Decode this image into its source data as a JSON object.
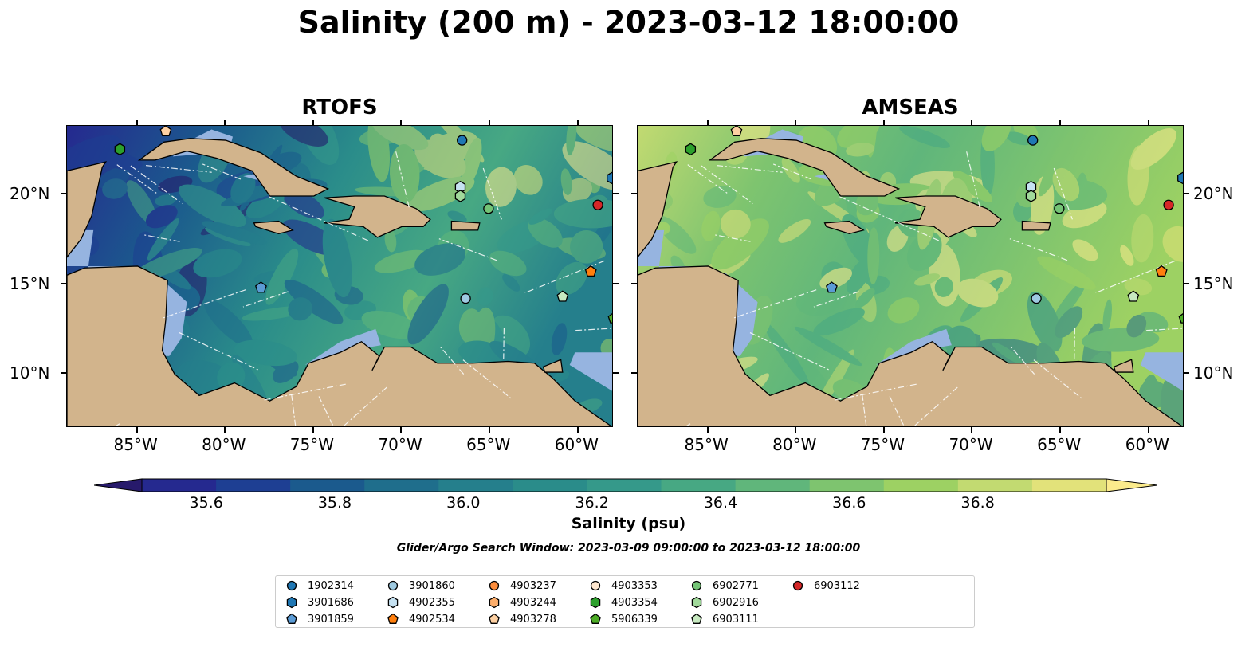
{
  "title": "Salinity (200 m) - 2023-03-12 18:00:00",
  "panels": [
    {
      "title": "RTOFS",
      "style": "low"
    },
    {
      "title": "AMSEAS",
      "style": "high"
    }
  ],
  "axes": {
    "lon_ticks": [
      "85°W",
      "80°W",
      "75°W",
      "70°W",
      "65°W",
      "60°W"
    ],
    "lat_ticks": [
      "20°N",
      "15°N",
      "10°N"
    ],
    "lon_range": [
      -89,
      -58
    ],
    "lat_range": [
      7,
      23.8
    ]
  },
  "colorbar": {
    "label": "Salinity (psu)",
    "ticks": [
      "35.6",
      "35.8",
      "36.0",
      "36.2",
      "36.4",
      "36.6",
      "36.8"
    ],
    "min": 35.5,
    "max": 37.0,
    "colors": [
      "#271a6b",
      "#25298f",
      "#1e3f93",
      "#1b5a8d",
      "#1f6e8c",
      "#257f8c",
      "#2a8c8a",
      "#35998a",
      "#47a883",
      "#60b67b",
      "#7ec46f",
      "#9dd163",
      "#c2da71",
      "#e2e27a",
      "#fbeb8c"
    ],
    "extend": "both"
  },
  "search_window": "Glider/Argo Search Window: 2023-03-09 09:00:00 to 2023-03-12 18:00:00",
  "colors": {
    "land": "#d2b48c",
    "shelf": "#96b4e0"
  },
  "legend": [
    {
      "id": "1902314",
      "marker": "circle",
      "color": "#1f77b4"
    },
    {
      "id": "3901686",
      "marker": "hexagon",
      "color": "#1f77b4"
    },
    {
      "id": "3901859",
      "marker": "pentagon",
      "color": "#5b9bd5"
    },
    {
      "id": "3901860",
      "marker": "circle",
      "color": "#9ecae1"
    },
    {
      "id": "4902355",
      "marker": "hexagon",
      "color": "#c6e2f2"
    },
    {
      "id": "4902534",
      "marker": "pentagon",
      "color": "#ff7f0e"
    },
    {
      "id": "4903237",
      "marker": "circle",
      "color": "#fd8d3c"
    },
    {
      "id": "4903244",
      "marker": "hexagon",
      "color": "#fdae6b"
    },
    {
      "id": "4903278",
      "marker": "pentagon",
      "color": "#fdd0a2"
    },
    {
      "id": "4903353",
      "marker": "circle",
      "color": "#fee6ce"
    },
    {
      "id": "4903354",
      "marker": "hexagon",
      "color": "#2ca02c"
    },
    {
      "id": "5906339",
      "marker": "pentagon",
      "color": "#4dac26"
    },
    {
      "id": "6902771",
      "marker": "circle",
      "color": "#74c476"
    },
    {
      "id": "6902916",
      "marker": "hexagon",
      "color": "#a1d99b"
    },
    {
      "id": "6903111",
      "marker": "pentagon",
      "color": "#c7e9c0"
    },
    {
      "id": "6903112",
      "marker": "circle",
      "color": "#d62728"
    }
  ],
  "floats": [
    {
      "id": "1902314",
      "lon": -66.6,
      "lat": 23.0
    },
    {
      "id": "3901686",
      "lon": -58.1,
      "lat": 20.9
    },
    {
      "id": "3901859",
      "lon": -78.0,
      "lat": 14.8
    },
    {
      "id": "3901860",
      "lon": -66.4,
      "lat": 14.2
    },
    {
      "id": "4902355",
      "lon": -66.7,
      "lat": 20.4
    },
    {
      "id": "4902534",
      "lon": -59.3,
      "lat": 15.7
    },
    {
      "id": "4903278",
      "lon": -83.4,
      "lat": 23.5
    },
    {
      "id": "4903354",
      "lon": -86.0,
      "lat": 22.5
    },
    {
      "id": "5906339",
      "lon": -58.0,
      "lat": 13.1
    },
    {
      "id": "6902771",
      "lon": -65.1,
      "lat": 19.2
    },
    {
      "id": "6902916",
      "lon": -66.7,
      "lat": 19.9
    },
    {
      "id": "6903111",
      "lon": -60.9,
      "lat": 14.3
    },
    {
      "id": "6903112",
      "lon": -58.9,
      "lat": 19.4
    }
  ]
}
